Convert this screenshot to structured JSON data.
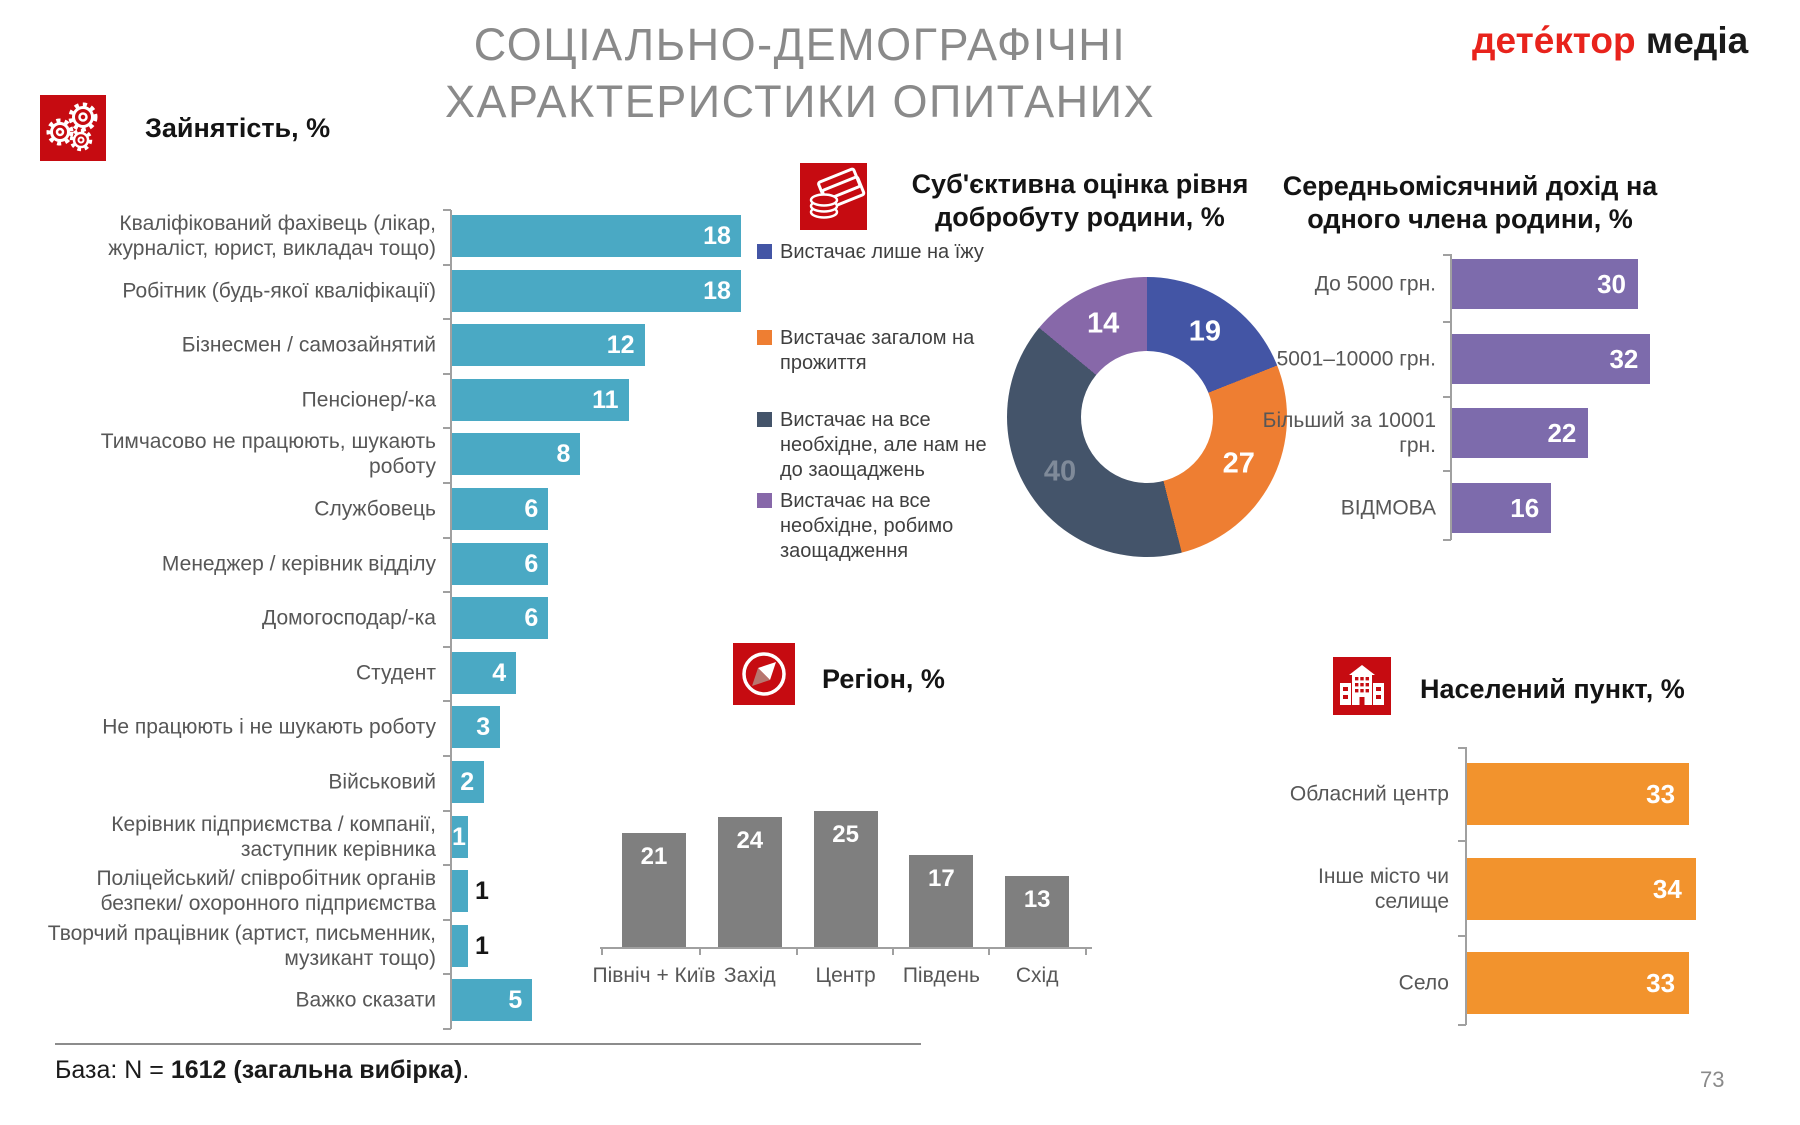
{
  "slide": {
    "title_line1": "СОЦІАЛЬНО-ДЕМОГРАФІЧНІ",
    "title_line2": "ХАРАКТЕРИСТИКИ ОПИТАНИХ",
    "page_number": "73"
  },
  "logo": {
    "part1": "дете́ктор",
    "part2": " медіа",
    "color1": "#E8231C",
    "color2": "#1A1A1A"
  },
  "footer": {
    "base_prefix": "База: N = ",
    "base_bold": "1612 (загальна вибірка)",
    "base_suffix": "."
  },
  "colors": {
    "icon_red": "#C60B11",
    "employment_bar": "#4AA9C4",
    "income_bar": "#7D6BAC",
    "region_bar": "#7F7F7F",
    "settlement_bar": "#F2932D",
    "axis_gray": "#A0A0A0",
    "title_gray": "#8A8A8A"
  },
  "employment": {
    "title": "Зайнятість, %",
    "icon": "gears-icon",
    "items": [
      {
        "label": "Кваліфікований фахівець (лікар, журналіст, юрист, викладач тощо)",
        "value": 18
      },
      {
        "label": "Робітник (будь-якої кваліфікації)",
        "value": 18
      },
      {
        "label": "Бізнесмен / самозайнятий",
        "value": 12
      },
      {
        "label": "Пенсіонер/-ка",
        "value": 11
      },
      {
        "label": "Тимчасово не працюють, шукають роботу",
        "value": 8
      },
      {
        "label": "Службовець",
        "value": 6
      },
      {
        "label": "Менеджер / керівник відділу",
        "value": 6
      },
      {
        "label": "Домогосподар/-ка",
        "value": 6
      },
      {
        "label": "Студент",
        "value": 4
      },
      {
        "label": "Не працюють і не шукають роботу",
        "value": 3
      },
      {
        "label": "Військовий",
        "value": 2
      },
      {
        "label": "Керівник підприємства / компанії, заступник керівника",
        "value": 1
      },
      {
        "label": "Поліцейський/ співробітник органів безпеки/ охоронного підприємства",
        "value": 1,
        "value_outside": true
      },
      {
        "label": "Творчий працівник (артист, письменник, музикант тощо)",
        "value": 1,
        "value_outside": true
      },
      {
        "label": "Важко сказати",
        "value": 5
      }
    ]
  },
  "welfare": {
    "icon": "money-icon",
    "title_line1": "Суб'єктивна оцінка рівня",
    "title_line2": "добробуту родини, %",
    "slices": [
      {
        "label": "Вистачає лише на їжу",
        "value": 19,
        "color": "#4355A5",
        "value_color": "#FFFFFF"
      },
      {
        "label": "Вистачає загалом на прожиття",
        "value": 27,
        "color": "#EE7E32",
        "value_color": "#FFFFFF"
      },
      {
        "label": "Вистачає на все необхідне, але нам не до заощаджень",
        "value": 40,
        "color": "#44546A",
        "value_color": "#7F8A99"
      },
      {
        "label": "Вистачає на все необхідне, робимо заощадження",
        "value": 14,
        "color": "#8768A9",
        "value_color": "#FFFFFF"
      }
    ]
  },
  "income": {
    "title_line1": "Середньомісячний дохід на",
    "title_line2": "одного члена родини, %",
    "items": [
      {
        "label": "До 5000 грн.",
        "value": 30
      },
      {
        "label": "5001–10000 грн.",
        "value": 32
      },
      {
        "label": "Більший за 10001 грн.",
        "value": 22
      },
      {
        "label": "ВІДМОВА",
        "value": 16
      }
    ]
  },
  "region": {
    "title": "Регіон, %",
    "icon": "compass-icon",
    "items": [
      {
        "label": "Північ + Київ",
        "value": 21
      },
      {
        "label": "Захід",
        "value": 24
      },
      {
        "label": "Центр",
        "value": 25
      },
      {
        "label": "Південь",
        "value": 17
      },
      {
        "label": "Схід",
        "value": 13
      }
    ]
  },
  "settlement": {
    "title": "Населений пункт, %",
    "icon": "buildings-icon",
    "items": [
      {
        "label": "Обласний центр",
        "value": 33
      },
      {
        "label": "Інше місто чи селище",
        "value": 34
      },
      {
        "label": "Село",
        "value": 33
      }
    ]
  },
  "chart_data": [
    {
      "type": "bar",
      "orientation": "horizontal",
      "title": "Зайнятість, %",
      "categories": [
        "Кваліфікований фахівець (лікар, журналіст, юрист, викладач тощо)",
        "Робітник (будь-якої кваліфікації)",
        "Бізнесмен / самозайнятий",
        "Пенсіонер/-ка",
        "Тимчасово не працюють, шукають роботу",
        "Службовець",
        "Менеджер / керівник відділу",
        "Домогосподар/-ка",
        "Студент",
        "Не працюють і не шукають роботу",
        "Військовий",
        "Керівник підприємства / компанії, заступник керівника",
        "Поліцейський/ співробітник органів безпеки/ охоронного підприємства",
        "Творчий працівник (артист, письменник, музикант тощо)",
        "Важко сказати"
      ],
      "values": [
        18,
        18,
        12,
        11,
        8,
        6,
        6,
        6,
        4,
        3,
        2,
        1,
        1,
        1,
        5
      ],
      "bar_color": "#4AA9C4",
      "grid": false,
      "value_labels": true
    },
    {
      "type": "pie",
      "subtype": "donut",
      "title": "Суб'єктивна оцінка рівня добробуту родини, %",
      "categories": [
        "Вистачає лише на їжу",
        "Вистачає загалом на прожиття",
        "Вистачає на все необхідне, але нам не до заощаджень",
        "Вистачає на все необхідне, робимо заощадження"
      ],
      "values": [
        19,
        27,
        40,
        14
      ],
      "colors": [
        "#4355A5",
        "#EE7E32",
        "#44546A",
        "#8768A9"
      ],
      "legend_position": "left",
      "start_angle_deg": 0,
      "direction": "clockwise"
    },
    {
      "type": "bar",
      "orientation": "horizontal",
      "title": "Середньомісячний дохід на одного члена родини, %",
      "categories": [
        "До 5000 грн.",
        "5001–10000 грн.",
        "Більший за 10001 грн.",
        "ВІДМОВА"
      ],
      "values": [
        30,
        32,
        22,
        16
      ],
      "bar_color": "#7D6BAC",
      "grid": false,
      "value_labels": true
    },
    {
      "type": "bar",
      "orientation": "vertical",
      "title": "Регіон, %",
      "categories": [
        "Північ + Київ",
        "Захід",
        "Центр",
        "Південь",
        "Схід"
      ],
      "values": [
        21,
        24,
        25,
        17,
        13
      ],
      "bar_color": "#7F7F7F",
      "grid": false,
      "value_labels": true
    },
    {
      "type": "bar",
      "orientation": "horizontal",
      "title": "Населений пункт, %",
      "categories": [
        "Обласний центр",
        "Інше місто чи селище",
        "Село"
      ],
      "values": [
        33,
        34,
        33
      ],
      "bar_color": "#F2932D",
      "grid": false,
      "value_labels": true
    }
  ]
}
